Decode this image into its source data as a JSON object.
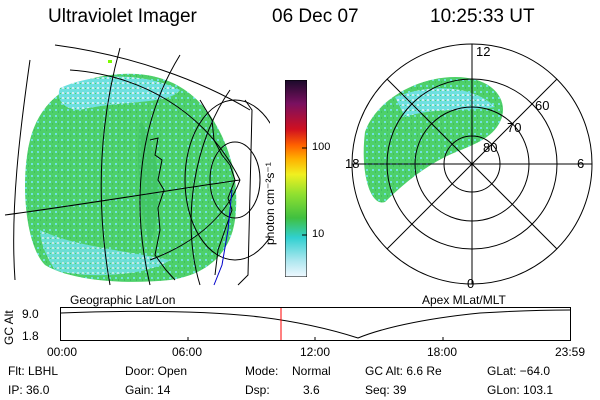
{
  "header": {
    "instrument": "Ultraviolet Imager",
    "date": "06 Dec 07",
    "time": "10:25:33 UT"
  },
  "colorbar": {
    "unit_text": "photon cm⁻²s⁻¹",
    "ticks": [
      "100",
      "10"
    ]
  },
  "geo_panel": {
    "label": "Geographic Lat/Lon"
  },
  "polar_panel": {
    "label": "Apex MLat/MLT",
    "mlt_labels": [
      "12",
      "18",
      "6",
      "0"
    ],
    "mlat_labels": [
      "60",
      "70",
      "80"
    ]
  },
  "altitude_plot": {
    "ylabel": "GC Alt",
    "ytick_top": "9.0",
    "ytick_bottom": "1.8",
    "xticks": [
      "00:00",
      "06:00",
      "12:00",
      "18:00",
      "23:59"
    ]
  },
  "info": {
    "filter": "Flt: LBHL",
    "ip": "IP: 36.0",
    "door": "Door: Open",
    "gain": "Gain: 14",
    "mode_label": "Mode:",
    "mode_value": "Normal",
    "dsp_label": "Dsp:",
    "dsp_value": "3.6",
    "gc_alt": "GC Alt: 6.6 Re",
    "seq": "Seq: 39",
    "glat": "GLat: −64.0",
    "glon": "GLon: 103.1"
  },
  "colors": {
    "image_green": "#4ed06a",
    "image_cyan": "#6ee0e0",
    "image_light": "#cfeef0",
    "marker_red": "#ff0000",
    "coast_blue": "#0000cc"
  }
}
